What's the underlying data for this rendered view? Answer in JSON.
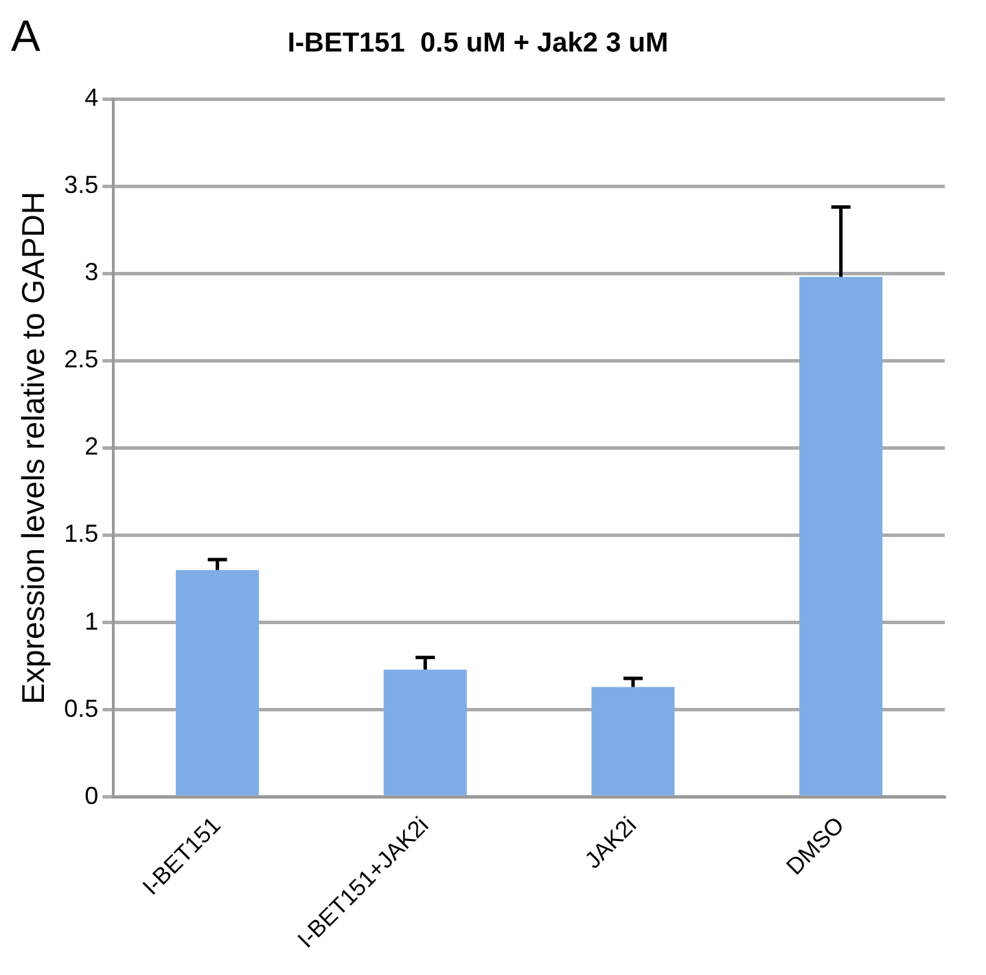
{
  "chart_data": {
    "type": "bar",
    "title": "I-BET151  0.5 uM + Jak2 3 uM",
    "ylabel": "Expression levels relative to GAPDH",
    "annotations": [
      "A"
    ],
    "categories": [
      "I-BET151",
      "I-BET151+JAK2i",
      "JAK2i",
      "DMSO"
    ],
    "values": [
      1.3,
      0.73,
      0.63,
      2.98
    ],
    "errors": [
      0.06,
      0.07,
      0.05,
      0.4
    ],
    "color": "#7eaee8",
    "ylim": [
      0,
      4
    ],
    "yticks": [
      0,
      0.5,
      1,
      1.5,
      2,
      2.5,
      3,
      3.5,
      4
    ],
    "grid": "y"
  }
}
